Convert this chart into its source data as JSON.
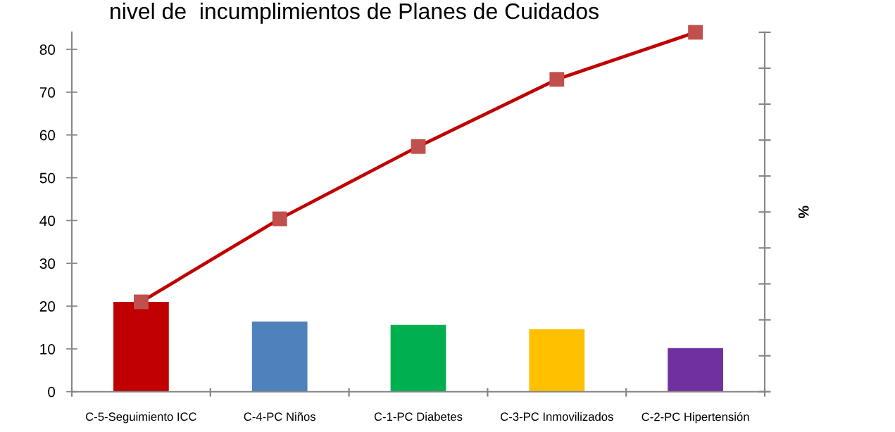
{
  "chart_data": {
    "type": "bar",
    "title": "nivel de  incumplimientos de Planes de Cuidados",
    "y2label": "%",
    "categories": [
      "C-5-Seguimiento ICC",
      "C-4-PC Niños",
      "C-1-PC Diabetes",
      "C-3-PC Inmovilizados",
      "C-2-PC Hipertensión"
    ],
    "series": [
      {
        "colors": [
          "#c00000",
          "#4f81bd",
          "#00b050",
          "#ffc000",
          "#7030a0"
        ],
        "values": [
          21,
          16.4,
          15.6,
          14.6,
          10.2
        ]
      },
      {
        "type": "line",
        "color": "#c00000",
        "colors": [
          "#c0504d",
          "#c0504d",
          "#c0504d",
          "#c0504d",
          "#c0504d"
        ],
        "values": [
          21,
          40.4,
          57.3,
          73,
          84
        ]
      }
    ],
    "marker": "square",
    "line_style": "solid",
    "ylim": [
      0,
      84
    ],
    "yticks": [
      0,
      10,
      20,
      30,
      40,
      50,
      60,
      70,
      80
    ]
  }
}
